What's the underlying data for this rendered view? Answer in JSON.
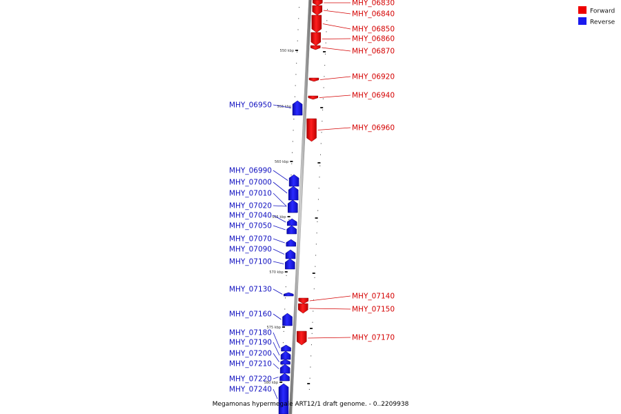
{
  "caption": "Megamonas hypermegale ART12/1 draft genome. - 0..2209938",
  "colors": {
    "forward": "#ee0000",
    "reverse": "#1a1aee",
    "backbone": "#888888"
  },
  "legend": [
    {
      "label": "Forward",
      "color": "#ee0000"
    },
    {
      "label": "Reverse",
      "color": "#1a1aee"
    }
  ],
  "scale_labels": [
    "550 kbp",
    "555 kbp",
    "560 kbp",
    "565 kbp",
    "570 kbp",
    "575 kbp",
    "580 kbp"
  ],
  "genes": [
    {
      "name": "MHY_06830",
      "strand": "forward"
    },
    {
      "name": "MHY_06840",
      "strand": "forward"
    },
    {
      "name": "MHY_06850",
      "strand": "forward"
    },
    {
      "name": "MHY_06860",
      "strand": "forward"
    },
    {
      "name": "MHY_06870",
      "strand": "forward"
    },
    {
      "name": "MHY_06920",
      "strand": "forward"
    },
    {
      "name": "MHY_06940",
      "strand": "forward"
    },
    {
      "name": "MHY_06950",
      "strand": "reverse"
    },
    {
      "name": "MHY_06960",
      "strand": "forward"
    },
    {
      "name": "MHY_06990",
      "strand": "reverse"
    },
    {
      "name": "MHY_07000",
      "strand": "reverse"
    },
    {
      "name": "MHY_07010",
      "strand": "reverse"
    },
    {
      "name": "MHY_07020",
      "strand": "reverse"
    },
    {
      "name": "MHY_07040",
      "strand": "reverse"
    },
    {
      "name": "MHY_07050",
      "strand": "reverse"
    },
    {
      "name": "MHY_07070",
      "strand": "reverse"
    },
    {
      "name": "MHY_07090",
      "strand": "reverse"
    },
    {
      "name": "MHY_07100",
      "strand": "reverse"
    },
    {
      "name": "MHY_07130",
      "strand": "reverse"
    },
    {
      "name": "MHY_07140",
      "strand": "forward"
    },
    {
      "name": "MHY_07150",
      "strand": "forward"
    },
    {
      "name": "MHY_07160",
      "strand": "reverse"
    },
    {
      "name": "MHY_07170",
      "strand": "forward"
    },
    {
      "name": "MHY_07180",
      "strand": "reverse"
    },
    {
      "name": "MHY_07190",
      "strand": "reverse"
    },
    {
      "name": "MHY_07200",
      "strand": "reverse"
    },
    {
      "name": "MHY_07210",
      "strand": "reverse"
    },
    {
      "name": "MHY_07220",
      "strand": "reverse"
    },
    {
      "name": "MHY_07240",
      "strand": "reverse"
    }
  ]
}
